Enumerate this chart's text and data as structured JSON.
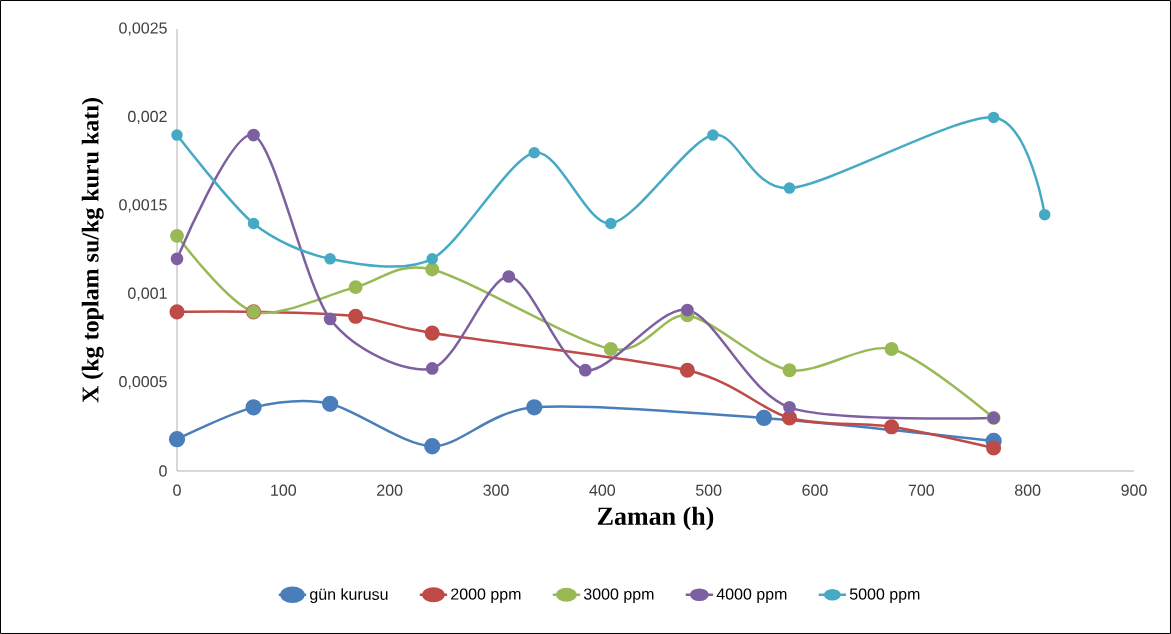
{
  "chart_data": {
    "type": "line",
    "xlabel": "Zaman (h)",
    "ylabel": "X (kg toplam su/kg kuru katı)",
    "xlim": [
      0,
      900
    ],
    "xticks": [
      0,
      100,
      200,
      300,
      400,
      500,
      600,
      700,
      800,
      900
    ],
    "ylim": [
      0,
      0.0025
    ],
    "yticks": [
      0,
      {
        "value": 0.0005,
        "label": "0,0005"
      },
      {
        "value": 0.001,
        "label": "0,001"
      },
      {
        "value": 0.0015,
        "label": "0,0015"
      },
      {
        "value": 0.002,
        "label": "0,002"
      },
      {
        "value": 0.0025,
        "label": "0,0025"
      }
    ],
    "marker": "circle",
    "line_style": "solid",
    "legend": "bottom",
    "series": [
      {
        "name": "gün kurusu",
        "color": "#4a7ebb",
        "x": [
          0,
          72,
          144,
          240,
          336,
          552,
          768
        ],
        "values": [
          0.00018,
          0.00036,
          0.00038,
          0.00014,
          0.00036,
          0.0003,
          0.00017
        ]
      },
      {
        "name": "2000 ppm",
        "color": "#be4b48",
        "x": [
          0,
          72,
          168,
          240,
          480,
          576,
          672,
          768
        ],
        "values": [
          0.0009,
          0.0009,
          0.000875,
          0.00078,
          0.00057,
          0.0003,
          0.00025,
          0.00013
        ]
      },
      {
        "name": "3000 ppm",
        "color": "#98b954",
        "x": [
          0,
          72,
          168,
          240,
          408,
          480,
          576,
          672,
          768
        ],
        "values": [
          0.00133,
          0.0009,
          0.00104,
          0.00114,
          0.00069,
          0.00088,
          0.00057,
          0.00069,
          0.0003
        ]
      },
      {
        "name": "4000 ppm",
        "color": "#7d60a0",
        "x": [
          0,
          72,
          144,
          240,
          312,
          384,
          480,
          576,
          768
        ],
        "values": [
          0.0012,
          0.0019,
          0.00086,
          0.00058,
          0.0011,
          0.00057,
          0.00091,
          0.00036,
          0.0003
        ]
      },
      {
        "name": "5000 ppm",
        "color": "#46aac5",
        "x": [
          0,
          72,
          144,
          240,
          336,
          408,
          504,
          576,
          768,
          816
        ],
        "values": [
          0.0019,
          0.0014,
          0.0012,
          0.0012,
          0.0018,
          0.0014,
          0.0019,
          0.0016,
          0.002,
          0.00145
        ]
      }
    ]
  }
}
